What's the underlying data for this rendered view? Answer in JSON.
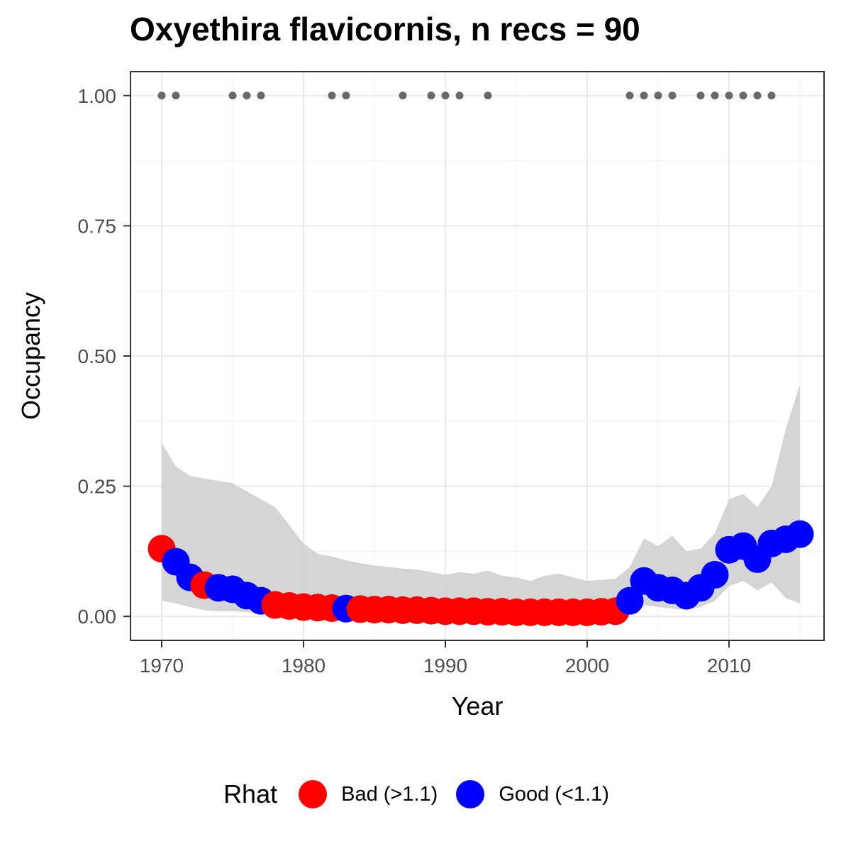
{
  "chart_data": {
    "type": "scatter",
    "title": "Oxyethira flavicornis, n recs = 90",
    "xlabel": "Year",
    "ylabel": "Occupancy",
    "xlim": [
      1967.8,
      2016.7
    ],
    "ylim": [
      -0.046,
      1.046
    ],
    "x_ticks": [
      1970,
      1980,
      1990,
      2000,
      2010
    ],
    "x_tick_labels": [
      "1970",
      "1980",
      "1990",
      "2000",
      "2010"
    ],
    "y_ticks": [
      0,
      0.25,
      0.5,
      0.75,
      1
    ],
    "y_tick_labels": [
      "0.00",
      "0.25",
      "0.50",
      "0.75",
      "1.00"
    ],
    "grid": true,
    "legend": {
      "title": "Rhat",
      "position": "bottom",
      "entries": [
        {
          "key": "Bad",
          "label": "Bad (>1.1)",
          "color": "#ff0000"
        },
        {
          "key": "Good",
          "label": "Good (<1.1)",
          "color": "#0000ff"
        }
      ]
    },
    "colors": {
      "Bad": "#ff0000",
      "Good": "#0000ff",
      "ribbon": "#d3d3d3",
      "records": "#696969"
    },
    "occupancy": {
      "years": [
        1970,
        1971,
        1972,
        1973,
        1974,
        1975,
        1976,
        1977,
        1978,
        1979,
        1980,
        1981,
        1982,
        1983,
        1984,
        1985,
        1986,
        1987,
        1988,
        1989,
        1990,
        1991,
        1992,
        1993,
        1994,
        1995,
        1996,
        1997,
        1998,
        1999,
        2000,
        2001,
        2002,
        2003,
        2004,
        2005,
        2006,
        2007,
        2008,
        2009,
        2010,
        2011,
        2012,
        2013,
        2014,
        2015
      ],
      "mean": [
        0.13,
        0.105,
        0.075,
        0.06,
        0.055,
        0.052,
        0.04,
        0.03,
        0.022,
        0.02,
        0.018,
        0.017,
        0.016,
        0.015,
        0.014,
        0.013,
        0.013,
        0.012,
        0.012,
        0.011,
        0.01,
        0.01,
        0.01,
        0.009,
        0.009,
        0.008,
        0.008,
        0.008,
        0.008,
        0.008,
        0.008,
        0.009,
        0.01,
        0.03,
        0.068,
        0.055,
        0.05,
        0.04,
        0.055,
        0.08,
        0.128,
        0.135,
        0.11,
        0.14,
        0.148,
        0.158
      ],
      "lower": [
        0.03,
        0.025,
        0.018,
        0.012,
        0.01,
        0.01,
        0.008,
        0.006,
        0.004,
        0.003,
        0.003,
        0.003,
        0.002,
        0.002,
        0.002,
        0.002,
        0.002,
        0.002,
        0.002,
        0.001,
        0.001,
        0.001,
        0.001,
        0.001,
        0.001,
        0.001,
        0.001,
        0.001,
        0.001,
        0.001,
        0.001,
        0.001,
        0.002,
        0.008,
        0.022,
        0.018,
        0.015,
        0.012,
        0.018,
        0.03,
        0.058,
        0.068,
        0.05,
        0.065,
        0.035,
        0.025
      ],
      "upper": [
        0.333,
        0.288,
        0.27,
        0.265,
        0.26,
        0.256,
        0.24,
        0.225,
        0.21,
        0.175,
        0.14,
        0.12,
        0.115,
        0.108,
        0.102,
        0.098,
        0.095,
        0.092,
        0.09,
        0.085,
        0.08,
        0.085,
        0.082,
        0.088,
        0.078,
        0.075,
        0.068,
        0.078,
        0.082,
        0.075,
        0.068,
        0.07,
        0.072,
        0.095,
        0.15,
        0.135,
        0.155,
        0.125,
        0.13,
        0.16,
        0.225,
        0.235,
        0.21,
        0.25,
        0.36,
        0.445
      ],
      "rhat": [
        "Bad",
        "Good",
        "Good",
        "Bad",
        "Good",
        "Good",
        "Good",
        "Good",
        "Bad",
        "Bad",
        "Bad",
        "Bad",
        "Bad",
        "Good",
        "Bad",
        "Bad",
        "Bad",
        "Bad",
        "Bad",
        "Bad",
        "Bad",
        "Bad",
        "Bad",
        "Bad",
        "Bad",
        "Bad",
        "Bad",
        "Bad",
        "Bad",
        "Bad",
        "Bad",
        "Bad",
        "Bad",
        "Good",
        "Good",
        "Good",
        "Good",
        "Good",
        "Good",
        "Good",
        "Good",
        "Good",
        "Good",
        "Good",
        "Good",
        "Good"
      ]
    },
    "records": {
      "years": [
        1970,
        1971,
        1975,
        1976,
        1977,
        1982,
        1983,
        1987,
        1989,
        1990,
        1991,
        1993,
        2003,
        2004,
        2005,
        2006,
        2008,
        2009,
        2010,
        2011,
        2012,
        2013
      ],
      "value": 1
    }
  }
}
